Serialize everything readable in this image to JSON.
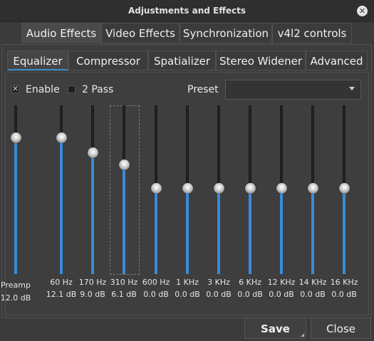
{
  "window": {
    "title": "Adjustments and Effects",
    "close_glyph": "✕"
  },
  "main_tabs": [
    {
      "label": "Audio Effects"
    },
    {
      "label": "Video Effects"
    },
    {
      "label": "Synchronization"
    },
    {
      "label": "v4l2 controls"
    }
  ],
  "sub_tabs": [
    {
      "label": "Equalizer"
    },
    {
      "label": "Compressor"
    },
    {
      "label": "Spatializer"
    },
    {
      "label": "Stereo Widener"
    },
    {
      "label": "Advanced"
    }
  ],
  "options": {
    "enable_label": "Enable",
    "enable_checked": true,
    "two_pass_label": "2 Pass",
    "two_pass_checked": false,
    "preset_label": "Preset",
    "preset_value": ""
  },
  "bands": [
    {
      "label": "Preamp",
      "value": "12.0 dB",
      "level": 0.81
    },
    {
      "label": "60 Hz",
      "value": "12.1 dB",
      "level": 0.81
    },
    {
      "label": "170 Hz",
      "value": "9.0 dB",
      "level": 0.72
    },
    {
      "label": "310 Hz",
      "value": "6.1 dB",
      "level": 0.65
    },
    {
      "label": "600 Hz",
      "value": "0.0 dB",
      "level": 0.51
    },
    {
      "label": "1 KHz",
      "value": "0.0 dB",
      "level": 0.51
    },
    {
      "label": "3 KHz",
      "value": "0.0 dB",
      "level": 0.51
    },
    {
      "label": "6 KHz",
      "value": "0.0 dB",
      "level": 0.51
    },
    {
      "label": "12 KHz",
      "value": "0.0 dB",
      "level": 0.51
    },
    {
      "label": "14 KHz",
      "value": "0.0 dB",
      "level": 0.51
    },
    {
      "label": "16 KHz",
      "value": "0.0 dB",
      "level": 0.51
    }
  ],
  "buttons": {
    "save": "Save",
    "close": "Close"
  },
  "colors": {
    "accent": "#3a8bd8",
    "background": "#3b3b3b"
  }
}
